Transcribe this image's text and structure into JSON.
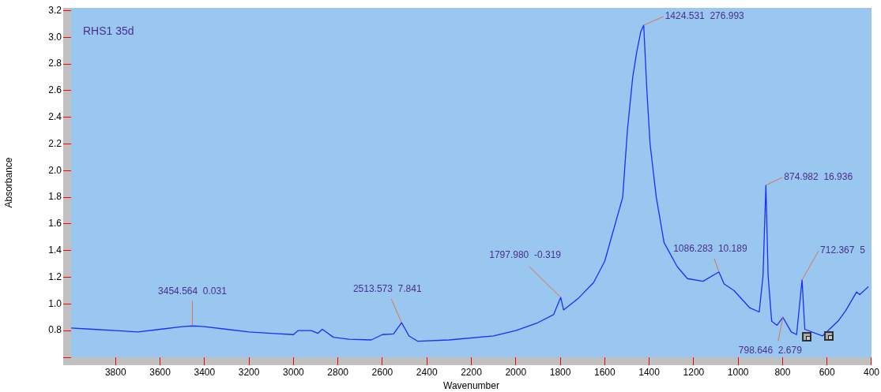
{
  "chart_data": {
    "type": "line",
    "title": "RHS1 35d",
    "xlabel": "Wavenumber",
    "ylabel": "Absorbance",
    "marker": "none",
    "xlim": [
      4000,
      400
    ],
    "xticks": [
      3800,
      3600,
      3400,
      3200,
      3000,
      2800,
      2600,
      2400,
      2200,
      2000,
      1800,
      1600,
      1400,
      1200,
      1000,
      800,
      600,
      400
    ],
    "ylim": [
      0.6,
      3.22
    ],
    "yticks": [
      {
        "value": 0.6,
        "label": null
      },
      {
        "value": 0.8,
        "label": "0.8"
      },
      {
        "value": 1.0,
        "label": "1.0"
      },
      {
        "value": 1.2,
        "label": "1.2"
      },
      {
        "value": 1.4,
        "label": "1.4"
      },
      {
        "value": 1.6,
        "label": "1.6"
      },
      {
        "value": 1.8,
        "label": "1.8"
      },
      {
        "value": 2.0,
        "label": "2.0"
      },
      {
        "value": 2.2,
        "label": "2.2"
      },
      {
        "value": 2.4,
        "label": "2.4"
      },
      {
        "value": 2.6,
        "label": "2.6"
      },
      {
        "value": 2.8,
        "label": "2.8"
      },
      {
        "value": 3.0,
        "label": "3.0"
      },
      {
        "value": 3.2,
        "label": "3.2"
      }
    ],
    "series": [
      {
        "color": "#1a2eff",
        "x": [
          4000,
          3900,
          3800,
          3700,
          3600,
          3500,
          3454.564,
          3400,
          3300,
          3200,
          3100,
          3000,
          2980,
          2920,
          2890,
          2870,
          2820,
          2750,
          2650,
          2600,
          2550,
          2513.573,
          2480,
          2440,
          2300,
          2100,
          2000,
          1900,
          1830,
          1797.98,
          1785,
          1720,
          1650,
          1600,
          1519,
          1498,
          1474,
          1456,
          1438,
          1424.531,
          1410,
          1396,
          1368,
          1333,
          1274,
          1228,
          1158,
          1086.283,
          1063,
          1018,
          947,
          905,
          888,
          874.982,
          865,
          849,
          825,
          798.646,
          761,
          737,
          712.367,
          700,
          621,
          551,
          516,
          467,
          453,
          414
        ],
        "values": [
          0.82,
          0.81,
          0.8,
          0.79,
          0.81,
          0.83,
          0.835,
          0.83,
          0.81,
          0.79,
          0.78,
          0.77,
          0.8,
          0.8,
          0.78,
          0.81,
          0.75,
          0.735,
          0.73,
          0.77,
          0.775,
          0.86,
          0.76,
          0.72,
          0.73,
          0.76,
          0.8,
          0.86,
          0.92,
          1.05,
          0.955,
          1.04,
          1.16,
          1.32,
          1.8,
          2.3,
          2.7,
          2.89,
          3.04,
          3.09,
          2.59,
          2.2,
          1.8,
          1.46,
          1.28,
          1.19,
          1.17,
          1.24,
          1.15,
          1.1,
          0.97,
          0.94,
          1.21,
          1.89,
          1.21,
          0.87,
          0.84,
          0.9,
          0.79,
          0.77,
          1.18,
          0.81,
          0.76,
          0.87,
          0.95,
          1.09,
          1.07,
          1.13
        ]
      }
    ],
    "annotations": [
      {
        "text": "3454.564  0.031",
        "x": 3454.564,
        "y": 0.835
      },
      {
        "text": "2513.573  7.841",
        "x": 2513.573,
        "y": 0.86
      },
      {
        "text": "1797.980  -0.319",
        "x": 1797.98,
        "y": 1.05
      },
      {
        "text": "1424.531  276.993",
        "x": 1424.531,
        "y": 3.09
      },
      {
        "text": "1086.283  10.189",
        "x": 1086.283,
        "y": 1.24
      },
      {
        "text": "874.982  16.936",
        "x": 874.982,
        "y": 1.89
      },
      {
        "text": "798.646  2.679",
        "x": 798.646,
        "y": 0.9
      },
      {
        "text": "712.367  5",
        "x": 712.367,
        "y": 1.18
      }
    ]
  }
}
